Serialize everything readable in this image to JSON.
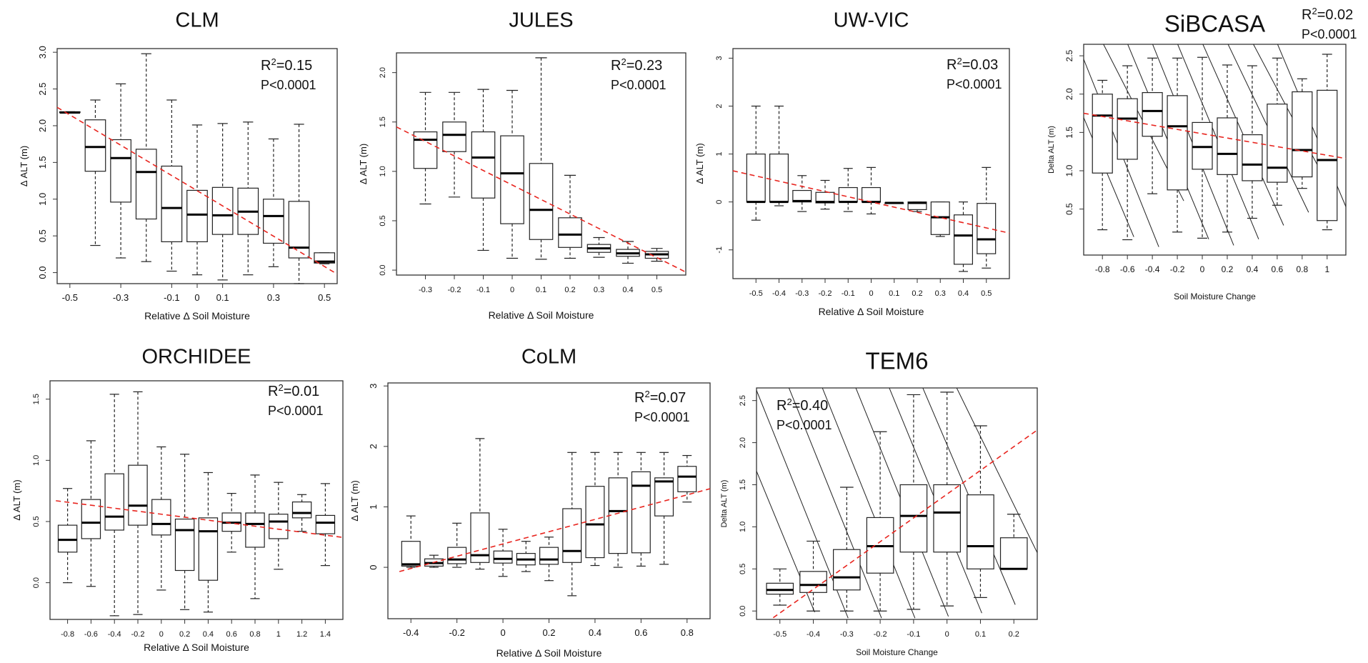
{
  "figure": {
    "line_color": "#e8251f",
    "box_color": "#222222"
  },
  "chart_data": [
    {
      "type": "box",
      "title": "CLM",
      "xlabel": "Relative Δ Soil Moisture",
      "ylabel": "Δ ALT (m)",
      "r2": "0.15",
      "p": "P<0.0001",
      "xlim": [
        -0.55,
        0.55
      ],
      "ylim": [
        -0.15,
        3.05
      ],
      "xticks": [
        -0.5,
        -0.3,
        -0.1,
        0,
        0.1,
        0.3,
        0.5
      ],
      "xtick_labels": [
        "-0.5",
        "-0.3",
        "-0.1",
        "0",
        "0.1",
        "0.3",
        "0.5"
      ],
      "yticks": [
        0,
        0.5,
        1,
        1.5,
        2,
        2.5,
        3
      ],
      "ytick_labels": [
        "0.0",
        "0.5",
        "1.0",
        "1.5",
        "2.0",
        "2.5",
        "3.0"
      ],
      "ytick_rotated": true,
      "trend": {
        "x": [
          -0.55,
          0.55
        ],
        "y": [
          2.25,
          -0.02
        ]
      },
      "boxes": [
        {
          "x": -0.5,
          "min": 2.18,
          "q1": 2.18,
          "median": 2.18,
          "q3": 2.19,
          "max": 2.19
        },
        {
          "x": -0.4,
          "min": 0.37,
          "q1": 1.38,
          "median": 1.71,
          "q3": 2.08,
          "max": 2.35
        },
        {
          "x": -0.3,
          "min": 0.2,
          "q1": 0.96,
          "median": 1.56,
          "q3": 1.81,
          "max": 2.57
        },
        {
          "x": -0.2,
          "min": 0.15,
          "q1": 0.73,
          "median": 1.37,
          "q3": 1.68,
          "max": 2.98
        },
        {
          "x": -0.1,
          "min": 0.02,
          "q1": 0.42,
          "median": 0.88,
          "q3": 1.45,
          "max": 2.35
        },
        {
          "x": 0,
          "min": -0.03,
          "q1": 0.42,
          "median": 0.79,
          "q3": 1.12,
          "max": 2.01
        },
        {
          "x": 0.1,
          "min": -0.1,
          "q1": 0.52,
          "median": 0.78,
          "q3": 1.16,
          "max": 2.03
        },
        {
          "x": 0.2,
          "min": -0.03,
          "q1": 0.52,
          "median": 0.83,
          "q3": 1.15,
          "max": 2.05
        },
        {
          "x": 0.3,
          "min": 0.08,
          "q1": 0.4,
          "median": 0.77,
          "q3": 1.0,
          "max": 1.82
        },
        {
          "x": 0.4,
          "min": -0.15,
          "q1": 0.2,
          "median": 0.34,
          "q3": 0.97,
          "max": 2.02
        },
        {
          "x": 0.5,
          "min": 0.12,
          "q1": 0.13,
          "median": 0.15,
          "q3": 0.27,
          "max": 0.27
        }
      ]
    },
    {
      "type": "box",
      "title": "JULES",
      "xlabel": "Relative Δ Soil Moisture",
      "ylabel": "Δ ALT (m)",
      "r2": "0.23",
      "p": "P<0.0001",
      "xlim": [
        -0.4,
        0.6
      ],
      "ylim": [
        -0.05,
        2.2
      ],
      "xticks": [
        -0.3,
        -0.2,
        -0.1,
        0,
        0.1,
        0.2,
        0.3,
        0.4,
        0.5
      ],
      "xtick_labels": [
        "-0.3",
        "-0.2",
        "-0.1",
        "0",
        "0.1",
        "0.2",
        "0.3",
        "0.4",
        "0.5"
      ],
      "yticks": [
        0,
        0.5,
        1,
        1.5,
        2
      ],
      "ytick_labels": [
        "0.0",
        "0.5",
        "1.0",
        "1.5",
        "2.0"
      ],
      "ytick_rotated": true,
      "trend": {
        "x": [
          -0.4,
          0.6
        ],
        "y": [
          1.45,
          -0.02
        ]
      },
      "boxes": [
        {
          "x": -0.3,
          "min": 0.67,
          "q1": 1.03,
          "median": 1.32,
          "q3": 1.4,
          "max": 1.8
        },
        {
          "x": -0.2,
          "min": 0.74,
          "q1": 1.2,
          "median": 1.37,
          "q3": 1.5,
          "max": 1.8
        },
        {
          "x": -0.1,
          "min": 0.2,
          "q1": 0.73,
          "median": 1.14,
          "q3": 1.4,
          "max": 1.83
        },
        {
          "x": 0,
          "min": 0.12,
          "q1": 0.47,
          "median": 0.98,
          "q3": 1.36,
          "max": 1.82
        },
        {
          "x": 0.1,
          "min": 0.11,
          "q1": 0.31,
          "median": 0.61,
          "q3": 1.08,
          "max": 2.15
        },
        {
          "x": 0.2,
          "min": 0.12,
          "q1": 0.23,
          "median": 0.36,
          "q3": 0.53,
          "max": 0.96
        },
        {
          "x": 0.3,
          "min": 0.13,
          "q1": 0.18,
          "median": 0.22,
          "q3": 0.26,
          "max": 0.33
        },
        {
          "x": 0.4,
          "min": 0.07,
          "q1": 0.14,
          "median": 0.17,
          "q3": 0.21,
          "max": 0.29
        },
        {
          "x": 0.5,
          "min": 0.09,
          "q1": 0.12,
          "median": 0.16,
          "q3": 0.19,
          "max": 0.22
        }
      ]
    },
    {
      "type": "box",
      "title": "UW-VIC",
      "xlabel": "Relative Δ Soil Moisture",
      "ylabel": "Δ ALT (m)",
      "r2": "0.03",
      "p": "P<0.0001",
      "xlim": [
        -0.6,
        0.6
      ],
      "ylim": [
        -1.6,
        3.2
      ],
      "xticks": [
        -0.5,
        -0.4,
        -0.3,
        -0.2,
        -0.1,
        0,
        0.1,
        0.2,
        0.3,
        0.4,
        0.5
      ],
      "xtick_labels": [
        "-0.5",
        "-0.4",
        "-0.3",
        "-0.2",
        "-0.1",
        "0",
        "0.1",
        "0.2",
        "0.3",
        "0.4",
        "0.5"
      ],
      "yticks": [
        -1,
        0,
        1,
        2,
        3
      ],
      "ytick_labels": [
        "-1",
        "0",
        "1",
        "2",
        "3"
      ],
      "ytick_rotated": true,
      "trend": {
        "x": [
          -0.6,
          0.6
        ],
        "y": [
          0.65,
          -0.65
        ]
      },
      "boxes": [
        {
          "x": -0.5,
          "min": -0.38,
          "q1": 0.0,
          "median": 0.0,
          "q3": 1.0,
          "max": 2.0
        },
        {
          "x": -0.4,
          "min": -0.08,
          "q1": 0.0,
          "median": 0.0,
          "q3": 1.0,
          "max": 2.0
        },
        {
          "x": -0.3,
          "min": -0.2,
          "q1": 0.0,
          "median": 0.02,
          "q3": 0.24,
          "max": 0.55
        },
        {
          "x": -0.2,
          "min": -0.15,
          "q1": -0.02,
          "median": 0.0,
          "q3": 0.2,
          "max": 0.45
        },
        {
          "x": -0.1,
          "min": -0.2,
          "q1": 0.0,
          "median": 0.0,
          "q3": 0.3,
          "max": 0.7
        },
        {
          "x": 0,
          "min": -0.25,
          "q1": 0.0,
          "median": 0.0,
          "q3": 0.3,
          "max": 0.72
        },
        {
          "x": 0.1,
          "min": -0.02,
          "q1": -0.02,
          "median": -0.02,
          "q3": -0.02,
          "max": -0.02
        },
        {
          "x": 0.2,
          "min": -0.2,
          "q1": -0.16,
          "median": -0.02,
          "q3": 0.0,
          "max": 0.0
        },
        {
          "x": 0.3,
          "min": -0.72,
          "q1": -0.68,
          "median": -0.32,
          "q3": 0.0,
          "max": 0.0
        },
        {
          "x": 0.4,
          "min": -1.45,
          "q1": -1.3,
          "median": -0.7,
          "q3": -0.27,
          "max": 0.0
        },
        {
          "x": 0.5,
          "min": -1.38,
          "q1": -1.08,
          "median": -0.78,
          "q3": -0.03,
          "max": 0.72
        }
      ]
    },
    {
      "type": "box",
      "title": "SiBCASA",
      "xlabel": "Soil Moisture Change",
      "ylabel": "Delta ALT (m)",
      "r2": "0.02",
      "p": "P<0.0001",
      "xlim": [
        -0.95,
        1.15
      ],
      "ylim": [
        -0.1,
        2.65
      ],
      "xticks": [
        -0.8,
        -0.6,
        -0.4,
        -0.2,
        0,
        0.2,
        0.4,
        0.6,
        0.8,
        1
      ],
      "xtick_labels": [
        "-0.8",
        "-0.6",
        "-0.4",
        "-0.2",
        "0",
        "0.2",
        "0.4",
        "0.6",
        "0.8",
        "1"
      ],
      "yticks": [
        0.5,
        1,
        1.5,
        2,
        2.5
      ],
      "ytick_labels": [
        "0.5",
        "1.0",
        "1.5",
        "2.0",
        "2.5"
      ],
      "ytick_rotated": true,
      "trend": {
        "x": [
          -0.95,
          1.15
        ],
        "y": [
          1.75,
          1.16
        ]
      },
      "boxes": [
        {
          "x": -0.8,
          "min": 0.23,
          "q1": 0.97,
          "median": 1.72,
          "q3": 2.0,
          "max": 2.18
        },
        {
          "x": -0.6,
          "min": 0.1,
          "q1": 1.15,
          "median": 1.68,
          "q3": 1.94,
          "max": 2.37
        },
        {
          "x": -0.4,
          "min": 0.7,
          "q1": 1.45,
          "median": 1.78,
          "q3": 2.02,
          "max": 2.47
        },
        {
          "x": -0.2,
          "min": 0.2,
          "q1": 0.75,
          "median": 1.58,
          "q3": 1.98,
          "max": 2.47
        },
        {
          "x": 0,
          "min": 0.12,
          "q1": 1.02,
          "median": 1.31,
          "q3": 1.63,
          "max": 2.48
        },
        {
          "x": 0.2,
          "min": 0.2,
          "q1": 0.95,
          "median": 1.22,
          "q3": 1.69,
          "max": 2.38
        },
        {
          "x": 0.4,
          "min": 0.38,
          "q1": 0.87,
          "median": 1.08,
          "q3": 1.47,
          "max": 2.37
        },
        {
          "x": 0.6,
          "min": 0.55,
          "q1": 0.85,
          "median": 1.04,
          "q3": 1.87,
          "max": 2.47
        },
        {
          "x": 0.8,
          "min": 0.77,
          "q1": 0.92,
          "median": 1.27,
          "q3": 2.03,
          "max": 2.2
        },
        {
          "x": 1,
          "min": 0.23,
          "q1": 0.35,
          "median": 1.14,
          "q3": 2.05,
          "max": 2.52
        }
      ]
    },
    {
      "type": "box",
      "title": "ORCHIDEE",
      "xlabel": "Relative Δ Soil Moisture",
      "ylabel": "Δ ALT (m)",
      "r2": "0.01",
      "p": "P<0.0001",
      "xlim": [
        -0.95,
        1.55
      ],
      "ylim": [
        -0.3,
        1.65
      ],
      "xticks": [
        -0.8,
        -0.6,
        -0.4,
        -0.2,
        0,
        0.2,
        0.4,
        0.6,
        0.8,
        1,
        1.2,
        1.4
      ],
      "xtick_labels": [
        "-0.8",
        "-0.6",
        "-0.4",
        "-0.2",
        "0",
        "0.2",
        "0.4",
        "0.6",
        "0.8",
        "1",
        "1.2",
        "1.4"
      ],
      "yticks": [
        0,
        0.5,
        1,
        1.5
      ],
      "ytick_labels": [
        "0.0",
        "0.5",
        "1.0",
        "1.5"
      ],
      "ytick_rotated": true,
      "trend": {
        "x": [
          -0.9,
          1.55
        ],
        "y": [
          0.67,
          0.37
        ]
      },
      "boxes": [
        {
          "x": -0.8,
          "min": 0.0,
          "q1": 0.25,
          "median": 0.35,
          "q3": 0.47,
          "max": 0.77
        },
        {
          "x": -0.6,
          "min": -0.03,
          "q1": 0.36,
          "median": 0.49,
          "q3": 0.68,
          "max": 1.16
        },
        {
          "x": -0.4,
          "min": -0.27,
          "q1": 0.43,
          "median": 0.54,
          "q3": 0.89,
          "max": 1.54
        },
        {
          "x": -0.2,
          "min": -0.26,
          "q1": 0.47,
          "median": 0.63,
          "q3": 0.96,
          "max": 1.56
        },
        {
          "x": 0,
          "min": -0.06,
          "q1": 0.39,
          "median": 0.48,
          "q3": 0.68,
          "max": 1.11
        },
        {
          "x": 0.2,
          "min": -0.22,
          "q1": 0.1,
          "median": 0.43,
          "q3": 0.52,
          "max": 1.05
        },
        {
          "x": 0.4,
          "min": -0.24,
          "q1": 0.02,
          "median": 0.42,
          "q3": 0.53,
          "max": 0.9
        },
        {
          "x": 0.6,
          "min": 0.25,
          "q1": 0.42,
          "median": 0.49,
          "q3": 0.57,
          "max": 0.73
        },
        {
          "x": 0.8,
          "min": -0.13,
          "q1": 0.29,
          "median": 0.48,
          "q3": 0.57,
          "max": 0.88
        },
        {
          "x": 1,
          "min": 0.11,
          "q1": 0.36,
          "median": 0.5,
          "q3": 0.56,
          "max": 0.82
        },
        {
          "x": 1.2,
          "min": 0.42,
          "q1": 0.53,
          "median": 0.57,
          "q3": 0.66,
          "max": 0.72
        },
        {
          "x": 1.4,
          "min": 0.14,
          "q1": 0.4,
          "median": 0.49,
          "q3": 0.55,
          "max": 0.81
        }
      ]
    },
    {
      "type": "box",
      "title": "CoLM",
      "xlabel": "Relative Δ Soil Moisture",
      "ylabel": "Δ ALT (m)",
      "r2": "0.07",
      "p": "P<0.0001",
      "xlim": [
        -0.5,
        0.9
      ],
      "ylim": [
        -0.85,
        3.05
      ],
      "xticks": [
        -0.4,
        -0.2,
        0,
        0.2,
        0.4,
        0.6,
        0.8
      ],
      "xtick_labels": [
        "-0.4",
        "-0.2",
        "0",
        "0.2",
        "0.4",
        "0.6",
        "0.8"
      ],
      "yticks": [
        0,
        1,
        2,
        3
      ],
      "ytick_labels": [
        "0",
        "1",
        "2",
        "3"
      ],
      "ytick_rotated": true,
      "trend": {
        "x": [
          -0.45,
          0.9
        ],
        "y": [
          -0.07,
          1.3
        ]
      },
      "boxes": [
        {
          "x": -0.4,
          "min": 0.0,
          "q1": 0.02,
          "median": 0.05,
          "q3": 0.43,
          "max": 0.85
        },
        {
          "x": -0.3,
          "min": 0.0,
          "q1": 0.02,
          "median": 0.07,
          "q3": 0.14,
          "max": 0.2
        },
        {
          "x": -0.2,
          "min": 0.0,
          "q1": 0.06,
          "median": 0.13,
          "q3": 0.33,
          "max": 0.73
        },
        {
          "x": -0.1,
          "min": -0.03,
          "q1": 0.08,
          "median": 0.2,
          "q3": 0.9,
          "max": 2.13
        },
        {
          "x": 0,
          "min": -0.15,
          "q1": 0.07,
          "median": 0.14,
          "q3": 0.27,
          "max": 0.63
        },
        {
          "x": 0.1,
          "min": -0.07,
          "q1": 0.04,
          "median": 0.13,
          "q3": 0.23,
          "max": 0.43
        },
        {
          "x": 0.2,
          "min": -0.22,
          "q1": 0.05,
          "median": 0.13,
          "q3": 0.33,
          "max": 0.5
        },
        {
          "x": 0.3,
          "min": -0.47,
          "q1": 0.08,
          "median": 0.27,
          "q3": 0.97,
          "max": 1.9
        },
        {
          "x": 0.4,
          "min": 0.03,
          "q1": 0.16,
          "median": 0.71,
          "q3": 1.34,
          "max": 1.9
        },
        {
          "x": 0.5,
          "min": 0.0,
          "q1": 0.23,
          "median": 0.93,
          "q3": 1.48,
          "max": 1.9
        },
        {
          "x": 0.6,
          "min": 0.02,
          "q1": 0.24,
          "median": 1.35,
          "q3": 1.58,
          "max": 1.9
        },
        {
          "x": 0.7,
          "min": 0.05,
          "q1": 0.85,
          "median": 1.42,
          "q3": 1.48,
          "max": 1.9
        },
        {
          "x": 0.8,
          "min": 1.08,
          "q1": 1.25,
          "median": 1.5,
          "q3": 1.67,
          "max": 1.85
        }
      ]
    },
    {
      "type": "box",
      "title": "TEM6",
      "xlabel": "Soil Moisture Change",
      "ylabel": "Delta ALT (m)",
      "r2": "0.40",
      "p": "P<0.0001",
      "xlim": [
        -0.57,
        0.27
      ],
      "ylim": [
        -0.1,
        2.65
      ],
      "xticks": [
        -0.5,
        -0.4,
        -0.3,
        -0.2,
        -0.1,
        0,
        0.1,
        0.2
      ],
      "xtick_labels": [
        "-0.5",
        "-0.4",
        "-0.3",
        "-0.2",
        "-0.1",
        "0",
        "0.1",
        "0.2"
      ],
      "yticks": [
        0,
        0.5,
        1,
        1.5,
        2,
        2.5
      ],
      "ytick_labels": [
        "0.0",
        "0.5",
        "1.0",
        "1.5",
        "2.0",
        "2.5"
      ],
      "ytick_rotated": true,
      "trend": {
        "x": [
          -0.52,
          0.27
        ],
        "y": [
          -0.08,
          2.15
        ]
      },
      "boxes": [
        {
          "x": -0.5,
          "min": 0.07,
          "q1": 0.2,
          "median": 0.25,
          "q3": 0.33,
          "max": 0.5
        },
        {
          "x": -0.4,
          "min": 0.0,
          "q1": 0.22,
          "median": 0.31,
          "q3": 0.47,
          "max": 0.83
        },
        {
          "x": -0.3,
          "min": 0.0,
          "q1": 0.25,
          "median": 0.4,
          "q3": 0.73,
          "max": 1.47
        },
        {
          "x": -0.2,
          "min": 0.0,
          "q1": 0.45,
          "median": 0.77,
          "q3": 1.11,
          "max": 2.13
        },
        {
          "x": -0.1,
          "min": 0.02,
          "q1": 0.7,
          "median": 1.13,
          "q3": 1.5,
          "max": 2.57
        },
        {
          "x": 0,
          "min": 0.06,
          "q1": 0.7,
          "median": 1.17,
          "q3": 1.5,
          "max": 2.6
        },
        {
          "x": 0.1,
          "min": 0.16,
          "q1": 0.5,
          "median": 0.77,
          "q3": 1.38,
          "max": 2.2
        },
        {
          "x": 0.2,
          "min": 0.5,
          "q1": 0.5,
          "median": 0.5,
          "q3": 0.87,
          "max": 1.15
        }
      ]
    }
  ]
}
